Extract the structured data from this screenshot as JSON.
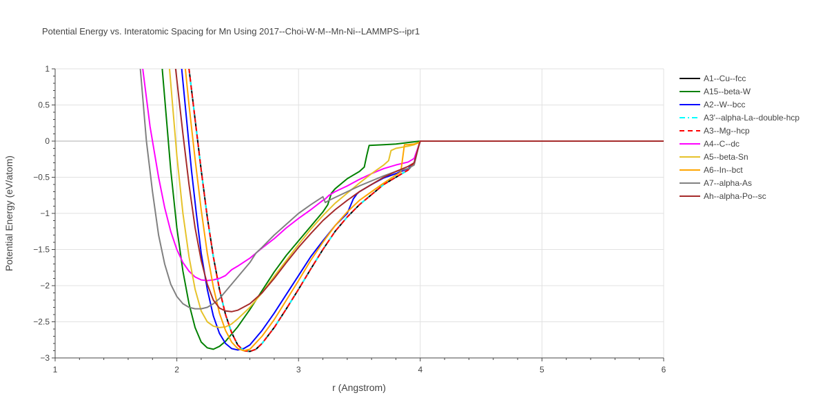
{
  "chart_data": {
    "type": "line",
    "title": "Potential Energy vs. Interatomic Spacing for Mn Using 2017--Choi-W-M--Mn-Ni--LAMMPS--ipr1",
    "xlabel": "r (Angstrom)",
    "ylabel": "Potential Energy (eV/atom)",
    "xlim": [
      1,
      6
    ],
    "ylim": [
      -3,
      1
    ],
    "xticks": [
      1,
      2,
      3,
      4,
      5,
      6
    ],
    "yticks": [
      1,
      0.5,
      0,
      -0.5,
      -1,
      -1.5,
      -2,
      -2.5,
      -3
    ],
    "xtick_labels": [
      "1",
      "2",
      "3",
      "4",
      "5",
      "6"
    ],
    "ytick_labels": [
      "1",
      "0.5",
      "0",
      "−0.5",
      "−1",
      "−1.5",
      "−2",
      "−2.5",
      "−3"
    ],
    "grid": true,
    "legend_position": "top-right",
    "series": [
      {
        "name": "A1--Cu--fcc",
        "color": "#000000",
        "dash": "solid",
        "x": [
          2.1,
          2.15,
          2.2,
          2.25,
          2.3,
          2.35,
          2.4,
          2.45,
          2.5,
          2.55,
          2.6,
          2.65,
          2.7,
          2.8,
          2.9,
          3.0,
          3.1,
          3.2,
          3.3,
          3.4,
          3.5,
          3.6,
          3.7,
          3.8,
          3.9,
          3.95,
          3.99,
          4.0,
          6.0
        ],
        "y": [
          1.0,
          0.3,
          -0.4,
          -1.05,
          -1.6,
          -2.05,
          -2.4,
          -2.65,
          -2.82,
          -2.9,
          -2.91,
          -2.88,
          -2.8,
          -2.58,
          -2.32,
          -2.05,
          -1.77,
          -1.5,
          -1.25,
          -1.05,
          -0.88,
          -0.74,
          -0.6,
          -0.5,
          -0.4,
          -0.3,
          -0.05,
          0,
          0
        ]
      },
      {
        "name": "A15--beta-W",
        "color": "#008000",
        "dash": "solid",
        "x": [
          1.88,
          1.95,
          2.0,
          2.05,
          2.1,
          2.15,
          2.2,
          2.25,
          2.3,
          2.35,
          2.4,
          2.5,
          2.6,
          2.7,
          2.8,
          2.9,
          3.0,
          3.1,
          3.2,
          3.24,
          3.27,
          3.3,
          3.4,
          3.5,
          3.54,
          3.56,
          3.58,
          3.7,
          3.8,
          3.9,
          4.0,
          6.0
        ],
        "y": [
          1.0,
          -0.4,
          -1.2,
          -1.8,
          -2.25,
          -2.58,
          -2.78,
          -2.86,
          -2.88,
          -2.84,
          -2.77,
          -2.57,
          -2.33,
          -2.07,
          -1.81,
          -1.58,
          -1.38,
          -1.18,
          -0.98,
          -0.88,
          -0.72,
          -0.66,
          -0.52,
          -0.42,
          -0.36,
          -0.2,
          -0.06,
          -0.05,
          -0.04,
          -0.02,
          0,
          0
        ]
      },
      {
        "name": "A2--W--bcc",
        "color": "#0000ff",
        "dash": "solid",
        "x": [
          2.04,
          2.08,
          2.12,
          2.16,
          2.2,
          2.25,
          2.3,
          2.35,
          2.4,
          2.45,
          2.5,
          2.55,
          2.6,
          2.7,
          2.8,
          2.9,
          3.0,
          3.1,
          3.2,
          3.3,
          3.4,
          3.45,
          3.48,
          3.5,
          3.6,
          3.7,
          3.8,
          3.9,
          3.95,
          3.99,
          4.0,
          6.0
        ],
        "y": [
          1.0,
          0.3,
          -0.4,
          -1.0,
          -1.55,
          -2.05,
          -2.42,
          -2.66,
          -2.8,
          -2.87,
          -2.89,
          -2.87,
          -2.82,
          -2.62,
          -2.38,
          -2.12,
          -1.86,
          -1.6,
          -1.38,
          -1.17,
          -1.0,
          -0.8,
          -0.73,
          -0.7,
          -0.6,
          -0.51,
          -0.45,
          -0.38,
          -0.3,
          -0.05,
          0,
          0
        ]
      },
      {
        "name": "A3'--alpha-La--double-hcp",
        "color": "#00ffff",
        "dash": "dashdot",
        "x": [
          2.1,
          2.15,
          2.2,
          2.25,
          2.3,
          2.35,
          2.4,
          2.45,
          2.5,
          2.55,
          2.6,
          2.65,
          2.7,
          2.8,
          2.9,
          3.0,
          3.1,
          3.2,
          3.3,
          3.4,
          3.5,
          3.6,
          3.7,
          3.8,
          3.9,
          3.95,
          3.99,
          4.0,
          6.0
        ],
        "y": [
          1.0,
          0.3,
          -0.4,
          -1.05,
          -1.6,
          -2.05,
          -2.4,
          -2.65,
          -2.82,
          -2.9,
          -2.91,
          -2.88,
          -2.8,
          -2.58,
          -2.32,
          -2.05,
          -1.77,
          -1.5,
          -1.25,
          -1.05,
          -0.88,
          -0.74,
          -0.6,
          -0.5,
          -0.4,
          -0.3,
          -0.05,
          0,
          0
        ]
      },
      {
        "name": "A3--Mg--hcp",
        "color": "#ff0000",
        "dash": "dash",
        "x": [
          2.1,
          2.15,
          2.2,
          2.25,
          2.3,
          2.35,
          2.4,
          2.45,
          2.5,
          2.55,
          2.6,
          2.65,
          2.7,
          2.8,
          2.9,
          3.0,
          3.1,
          3.2,
          3.3,
          3.4,
          3.5,
          3.6,
          3.7,
          3.8,
          3.9,
          3.95,
          3.99,
          4.0,
          6.0
        ],
        "y": [
          1.0,
          0.3,
          -0.4,
          -1.05,
          -1.6,
          -2.05,
          -2.4,
          -2.65,
          -2.82,
          -2.9,
          -2.91,
          -2.88,
          -2.8,
          -2.58,
          -2.32,
          -2.05,
          -1.77,
          -1.5,
          -1.25,
          -1.05,
          -0.88,
          -0.74,
          -0.6,
          -0.5,
          -0.4,
          -0.3,
          -0.05,
          0,
          0
        ]
      },
      {
        "name": "A4--C--dc",
        "color": "#ff00ff",
        "dash": "solid",
        "x": [
          1.72,
          1.78,
          1.85,
          1.9,
          1.95,
          2.0,
          2.05,
          2.1,
          2.15,
          2.2,
          2.25,
          2.3,
          2.35,
          2.4,
          2.45,
          2.5,
          2.6,
          2.7,
          2.8,
          2.9,
          3.0,
          3.1,
          3.2,
          3.22,
          3.25,
          3.3,
          3.4,
          3.5,
          3.6,
          3.7,
          3.8,
          3.9,
          3.95,
          3.99,
          4.0,
          6.0
        ],
        "y": [
          1.0,
          0.2,
          -0.5,
          -0.92,
          -1.25,
          -1.5,
          -1.68,
          -1.8,
          -1.88,
          -1.92,
          -1.93,
          -1.92,
          -1.9,
          -1.86,
          -1.78,
          -1.73,
          -1.62,
          -1.48,
          -1.35,
          -1.2,
          -1.07,
          -0.95,
          -0.82,
          -0.8,
          -0.75,
          -0.7,
          -0.62,
          -0.53,
          -0.45,
          -0.38,
          -0.33,
          -0.29,
          -0.24,
          -0.05,
          0,
          0
        ]
      },
      {
        "name": "A5--beta-Sn",
        "color": "#e6c229",
        "dash": "solid",
        "x": [
          1.94,
          2.0,
          2.05,
          2.1,
          2.15,
          2.2,
          2.25,
          2.3,
          2.35,
          2.4,
          2.45,
          2.5,
          2.6,
          2.7,
          2.8,
          2.9,
          3.0,
          3.1,
          3.2,
          3.3,
          3.4,
          3.5,
          3.6,
          3.7,
          3.74,
          3.76,
          3.8,
          3.9,
          3.95,
          3.99,
          4.0,
          6.0
        ],
        "y": [
          1.0,
          -0.2,
          -1.0,
          -1.6,
          -2.05,
          -2.35,
          -2.5,
          -2.56,
          -2.58,
          -2.57,
          -2.53,
          -2.46,
          -2.3,
          -2.1,
          -1.87,
          -1.65,
          -1.43,
          -1.22,
          -1.03,
          -0.86,
          -0.72,
          -0.58,
          -0.45,
          -0.33,
          -0.27,
          -0.13,
          -0.1,
          -0.07,
          -0.05,
          -0.02,
          0,
          0
        ]
      },
      {
        "name": "A6--In--bct",
        "color": "#ffa500",
        "dash": "solid",
        "x": [
          2.07,
          2.1,
          2.15,
          2.2,
          2.25,
          2.3,
          2.35,
          2.4,
          2.45,
          2.5,
          2.55,
          2.6,
          2.7,
          2.8,
          2.9,
          3.0,
          3.1,
          3.2,
          3.3,
          3.4,
          3.5,
          3.6,
          3.7,
          3.8,
          3.84,
          3.87,
          3.9,
          3.95,
          3.99,
          4.0,
          6.0
        ],
        "y": [
          1.0,
          0.5,
          -0.25,
          -0.95,
          -1.55,
          -2.02,
          -2.38,
          -2.62,
          -2.78,
          -2.87,
          -2.9,
          -2.88,
          -2.7,
          -2.47,
          -2.2,
          -1.93,
          -1.65,
          -1.4,
          -1.17,
          -0.98,
          -0.82,
          -0.7,
          -0.58,
          -0.47,
          -0.43,
          -0.05,
          -0.05,
          -0.04,
          -0.02,
          0,
          0
        ]
      },
      {
        "name": "A7--alpha-As",
        "color": "#808080",
        "dash": "solid",
        "x": [
          1.7,
          1.75,
          1.8,
          1.85,
          1.9,
          1.95,
          2.0,
          2.05,
          2.1,
          2.15,
          2.2,
          2.25,
          2.3,
          2.35,
          2.4,
          2.5,
          2.6,
          2.65,
          2.7,
          2.8,
          2.9,
          3.0,
          3.1,
          3.2,
          3.22,
          3.25,
          3.3,
          3.4,
          3.5,
          3.6,
          3.7,
          3.8,
          3.9,
          3.95,
          3.99,
          4.0,
          6.0
        ],
        "y": [
          1.0,
          0.0,
          -0.7,
          -1.3,
          -1.7,
          -1.98,
          -2.15,
          -2.25,
          -2.3,
          -2.32,
          -2.32,
          -2.3,
          -2.25,
          -2.18,
          -2.08,
          -1.88,
          -1.68,
          -1.55,
          -1.47,
          -1.3,
          -1.15,
          -1.0,
          -0.88,
          -0.77,
          -0.85,
          -0.82,
          -0.78,
          -0.7,
          -0.62,
          -0.55,
          -0.48,
          -0.42,
          -0.38,
          -0.33,
          -0.05,
          0,
          0
        ]
      },
      {
        "name": "Ah--alpha-Po--sc",
        "color": "#a52a2a",
        "dash": "solid",
        "x": [
          1.99,
          2.05,
          2.1,
          2.15,
          2.2,
          2.25,
          2.3,
          2.35,
          2.4,
          2.45,
          2.5,
          2.6,
          2.7,
          2.8,
          2.9,
          3.0,
          3.1,
          3.2,
          3.3,
          3.4,
          3.5,
          3.6,
          3.7,
          3.8,
          3.9,
          3.95,
          3.99,
          4.0,
          6.0
        ],
        "y": [
          1.0,
          0.1,
          -0.6,
          -1.2,
          -1.65,
          -1.98,
          -2.2,
          -2.31,
          -2.35,
          -2.36,
          -2.34,
          -2.25,
          -2.1,
          -1.9,
          -1.68,
          -1.47,
          -1.28,
          -1.1,
          -0.95,
          -0.82,
          -0.7,
          -0.6,
          -0.5,
          -0.42,
          -0.35,
          -0.3,
          -0.05,
          0,
          0
        ]
      }
    ]
  }
}
